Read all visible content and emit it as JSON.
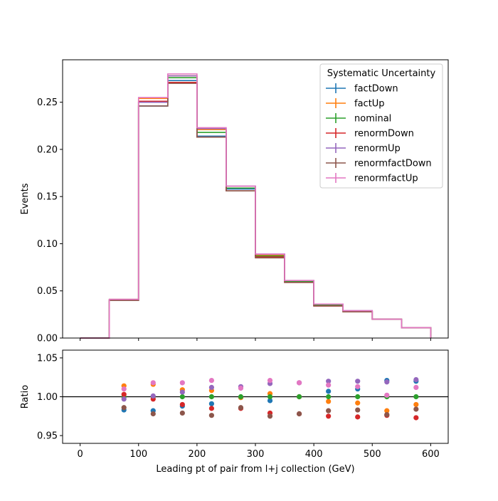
{
  "chart_data": [
    {
      "type": "line",
      "title": "",
      "xlabel": "",
      "ylabel": "Events",
      "xlim": [
        -30,
        630
      ],
      "ylim": [
        0,
        0.295
      ],
      "yticks": [
        "0.00",
        "0.05",
        "0.10",
        "0.15",
        "0.20",
        "0.25"
      ],
      "bin_edges": [
        0,
        50,
        100,
        150,
        200,
        250,
        300,
        350,
        400,
        450,
        500,
        550,
        600
      ],
      "legend": {
        "title": "Systematic Uncertainty",
        "placement": "top-right"
      },
      "series": [
        {
          "name": "factDown",
          "color": "#1f77b4",
          "values": [
            0.0,
            0.04,
            0.246,
            0.273,
            0.214,
            0.158,
            0.087,
            0.06,
            0.035,
            0.028,
            0.02,
            0.011
          ]
        },
        {
          "name": "factUp",
          "color": "#ff7f0e",
          "values": [
            0.0,
            0.041,
            0.254,
            0.278,
            0.221,
            0.159,
            0.088,
            0.06,
            0.035,
            0.028,
            0.02,
            0.011
          ]
        },
        {
          "name": "nominal",
          "color": "#2ca02c",
          "values": [
            0.0,
            0.04,
            0.25,
            0.276,
            0.218,
            0.159,
            0.087,
            0.06,
            0.035,
            0.028,
            0.02,
            0.011
          ]
        },
        {
          "name": "renormDown",
          "color": "#d62728",
          "values": [
            0.0,
            0.04,
            0.251,
            0.271,
            0.213,
            0.156,
            0.086,
            0.059,
            0.034,
            0.028,
            0.02,
            0.011
          ]
        },
        {
          "name": "renormUp",
          "color": "#9467bd",
          "values": [
            0.0,
            0.041,
            0.25,
            0.278,
            0.222,
            0.161,
            0.089,
            0.061,
            0.036,
            0.029,
            0.02,
            0.011
          ]
        },
        {
          "name": "renormfactDown",
          "color": "#8c564b",
          "values": [
            0.0,
            0.04,
            0.246,
            0.27,
            0.213,
            0.156,
            0.085,
            0.059,
            0.034,
            0.028,
            0.02,
            0.011
          ]
        },
        {
          "name": "renormfactUp",
          "color": "#e377c2",
          "values": [
            0.0,
            0.041,
            0.255,
            0.28,
            0.223,
            0.161,
            0.089,
            0.061,
            0.036,
            0.029,
            0.02,
            0.011
          ]
        }
      ]
    },
    {
      "type": "scatter",
      "title": "",
      "xlabel": "Leading pt of pair from l+j collection (GeV)",
      "ylabel": "Ratio",
      "xlim": [
        -30,
        630
      ],
      "ylim": [
        0.94,
        1.06
      ],
      "yticks": [
        "0.95",
        "1.00",
        "1.05"
      ],
      "xticks": [
        "0",
        "100",
        "200",
        "300",
        "400",
        "500",
        "600"
      ],
      "reference_line": 1.0,
      "x": [
        75,
        125,
        175,
        225,
        275,
        325,
        375,
        425,
        475,
        525,
        575
      ],
      "series": [
        {
          "name": "factDown",
          "color": "#1f77b4",
          "values": [
            0.983,
            0.982,
            0.988,
            0.991,
            0.999,
            0.995,
            1.0,
            1.007,
            1.01,
            1.021,
            1.02
          ]
        },
        {
          "name": "factUp",
          "color": "#ff7f0e",
          "values": [
            1.014,
            1.016,
            1.009,
            1.008,
            0.999,
            1.004,
            1.0,
            0.994,
            0.992,
            0.982,
            0.99
          ]
        },
        {
          "name": "nominal",
          "color": "#2ca02c",
          "values": [
            1.0,
            1.0,
            1.0,
            1.0,
            1.0,
            1.0,
            1.0,
            1.0,
            1.0,
            1.0,
            1.0
          ]
        },
        {
          "name": "renormDown",
          "color": "#d62728",
          "values": [
            1.003,
            0.997,
            0.99,
            0.985,
            0.985,
            0.979,
            0.978,
            0.975,
            0.974,
            0.976,
            0.973
          ]
        },
        {
          "name": "renormUp",
          "color": "#9467bd",
          "values": [
            0.997,
            1.001,
            1.006,
            1.012,
            1.013,
            1.017,
            1.018,
            1.02,
            1.02,
            1.019,
            1.022
          ]
        },
        {
          "name": "renormfactDown",
          "color": "#8c564b",
          "values": [
            0.986,
            0.978,
            0.979,
            0.976,
            0.986,
            0.975,
            0.978,
            0.982,
            0.983,
            0.977,
            0.984
          ]
        },
        {
          "name": "renormfactUp",
          "color": "#e377c2",
          "values": [
            1.01,
            1.018,
            1.018,
            1.021,
            1.011,
            1.021,
            1.018,
            1.015,
            1.013,
            1.002,
            1.012
          ]
        }
      ]
    }
  ]
}
